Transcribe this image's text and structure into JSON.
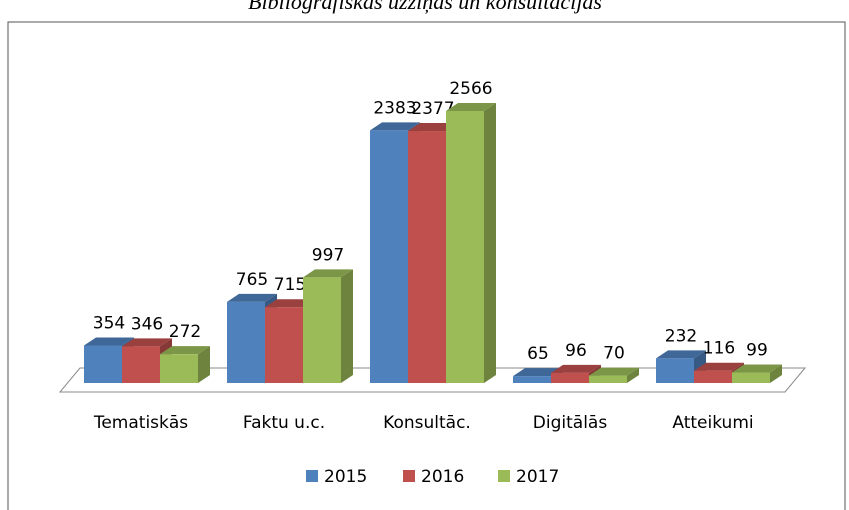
{
  "chart_data": {
    "type": "bar3d",
    "title": "Bibliogrāfiskās uzziņas un konsultācijas",
    "categories": [
      "Tematiskās",
      "Faktu u.c.",
      "Konsultāc.",
      "Digitālās",
      "Atteikumi"
    ],
    "series": [
      {
        "name": "2015",
        "color": "#4f81bd",
        "values": [
          354,
          765,
          2383,
          65,
          232
        ]
      },
      {
        "name": "2016",
        "color": "#c0504d",
        "values": [
          346,
          715,
          2377,
          96,
          116
        ]
      },
      {
        "name": "2017",
        "color": "#9bbb59",
        "values": [
          272,
          997,
          2566,
          70,
          99
        ]
      }
    ],
    "legend": "bottom"
  }
}
